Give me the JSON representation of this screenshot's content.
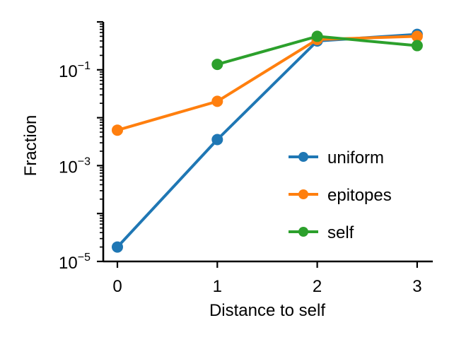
{
  "chart_data": {
    "type": "line",
    "title": "",
    "xlabel": "Distance to self",
    "ylabel": "Fraction",
    "x": [
      0,
      1,
      2,
      3
    ],
    "x_ticks": [
      "0",
      "1",
      "2",
      "3"
    ],
    "y_scale": "log",
    "ylim": [
      1e-05,
      1
    ],
    "y_ticks": [
      {
        "base": "10",
        "exp": "−5",
        "value": 1e-05
      },
      {
        "base": "10",
        "exp": "−3",
        "value": 0.001
      },
      {
        "base": "10",
        "exp": "−1",
        "value": 0.1
      }
    ],
    "grid": false,
    "legend_position": "lower-right",
    "series": [
      {
        "name": "uniform",
        "color": "#1f77b4",
        "x": [
          0,
          1,
          2,
          3
        ],
        "values": [
          2e-05,
          0.0035,
          0.4,
          0.55
        ]
      },
      {
        "name": "epitopes",
        "color": "#ff7f0e",
        "x": [
          0,
          1,
          2,
          3
        ],
        "values": [
          0.0055,
          0.022,
          0.43,
          0.5
        ]
      },
      {
        "name": "self",
        "color": "#2ca02c",
        "x": [
          1,
          2,
          3
        ],
        "values": [
          0.13,
          0.5,
          0.32
        ]
      }
    ]
  }
}
